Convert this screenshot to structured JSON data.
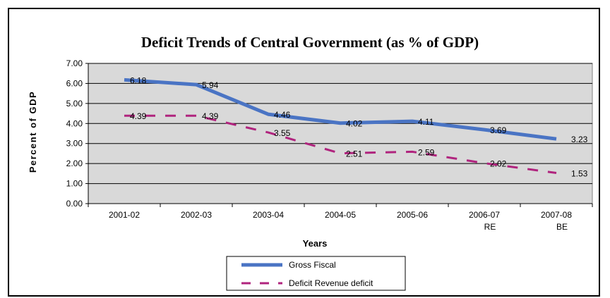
{
  "chart_data": {
    "type": "line",
    "title": "Deficit Trends of Central Government  (as % of GDP)",
    "xlabel": "Years",
    "ylabel": "Percent of GDP",
    "categories": [
      [
        "2001-02"
      ],
      [
        "2002-03"
      ],
      [
        "2003-04"
      ],
      [
        "2004-05"
      ],
      [
        "2005-06"
      ],
      [
        "2006-07",
        "RE"
      ],
      [
        "2007-08",
        "BE"
      ]
    ],
    "yticks": [
      "0.00",
      "1.00",
      "2.00",
      "3.00",
      "4.00",
      "5.00",
      "6.00",
      "7.00"
    ],
    "ylim": [
      0,
      7
    ],
    "grid": true,
    "legend_position": "bottom",
    "series": [
      {
        "name": "Gross Fiscal",
        "values": [
          6.18,
          5.94,
          4.46,
          4.02,
          4.11,
          3.69,
          3.23
        ],
        "labels": [
          "6.18",
          "5.94",
          "4.46",
          "4.02",
          "4.11",
          "3.69",
          "3.23"
        ],
        "color": "#4a74c4",
        "style": "solid"
      },
      {
        "name": "Deficit  Revenue deficit",
        "values": [
          4.39,
          4.39,
          3.55,
          2.51,
          2.59,
          2.02,
          1.53
        ],
        "labels": [
          "4.39",
          "4.39",
          "3.55",
          "2.51",
          "2.59",
          "2.02",
          "1.53"
        ],
        "color": "#b0247e",
        "style": "dashed"
      }
    ],
    "plot_background": "#d9d9d9"
  }
}
